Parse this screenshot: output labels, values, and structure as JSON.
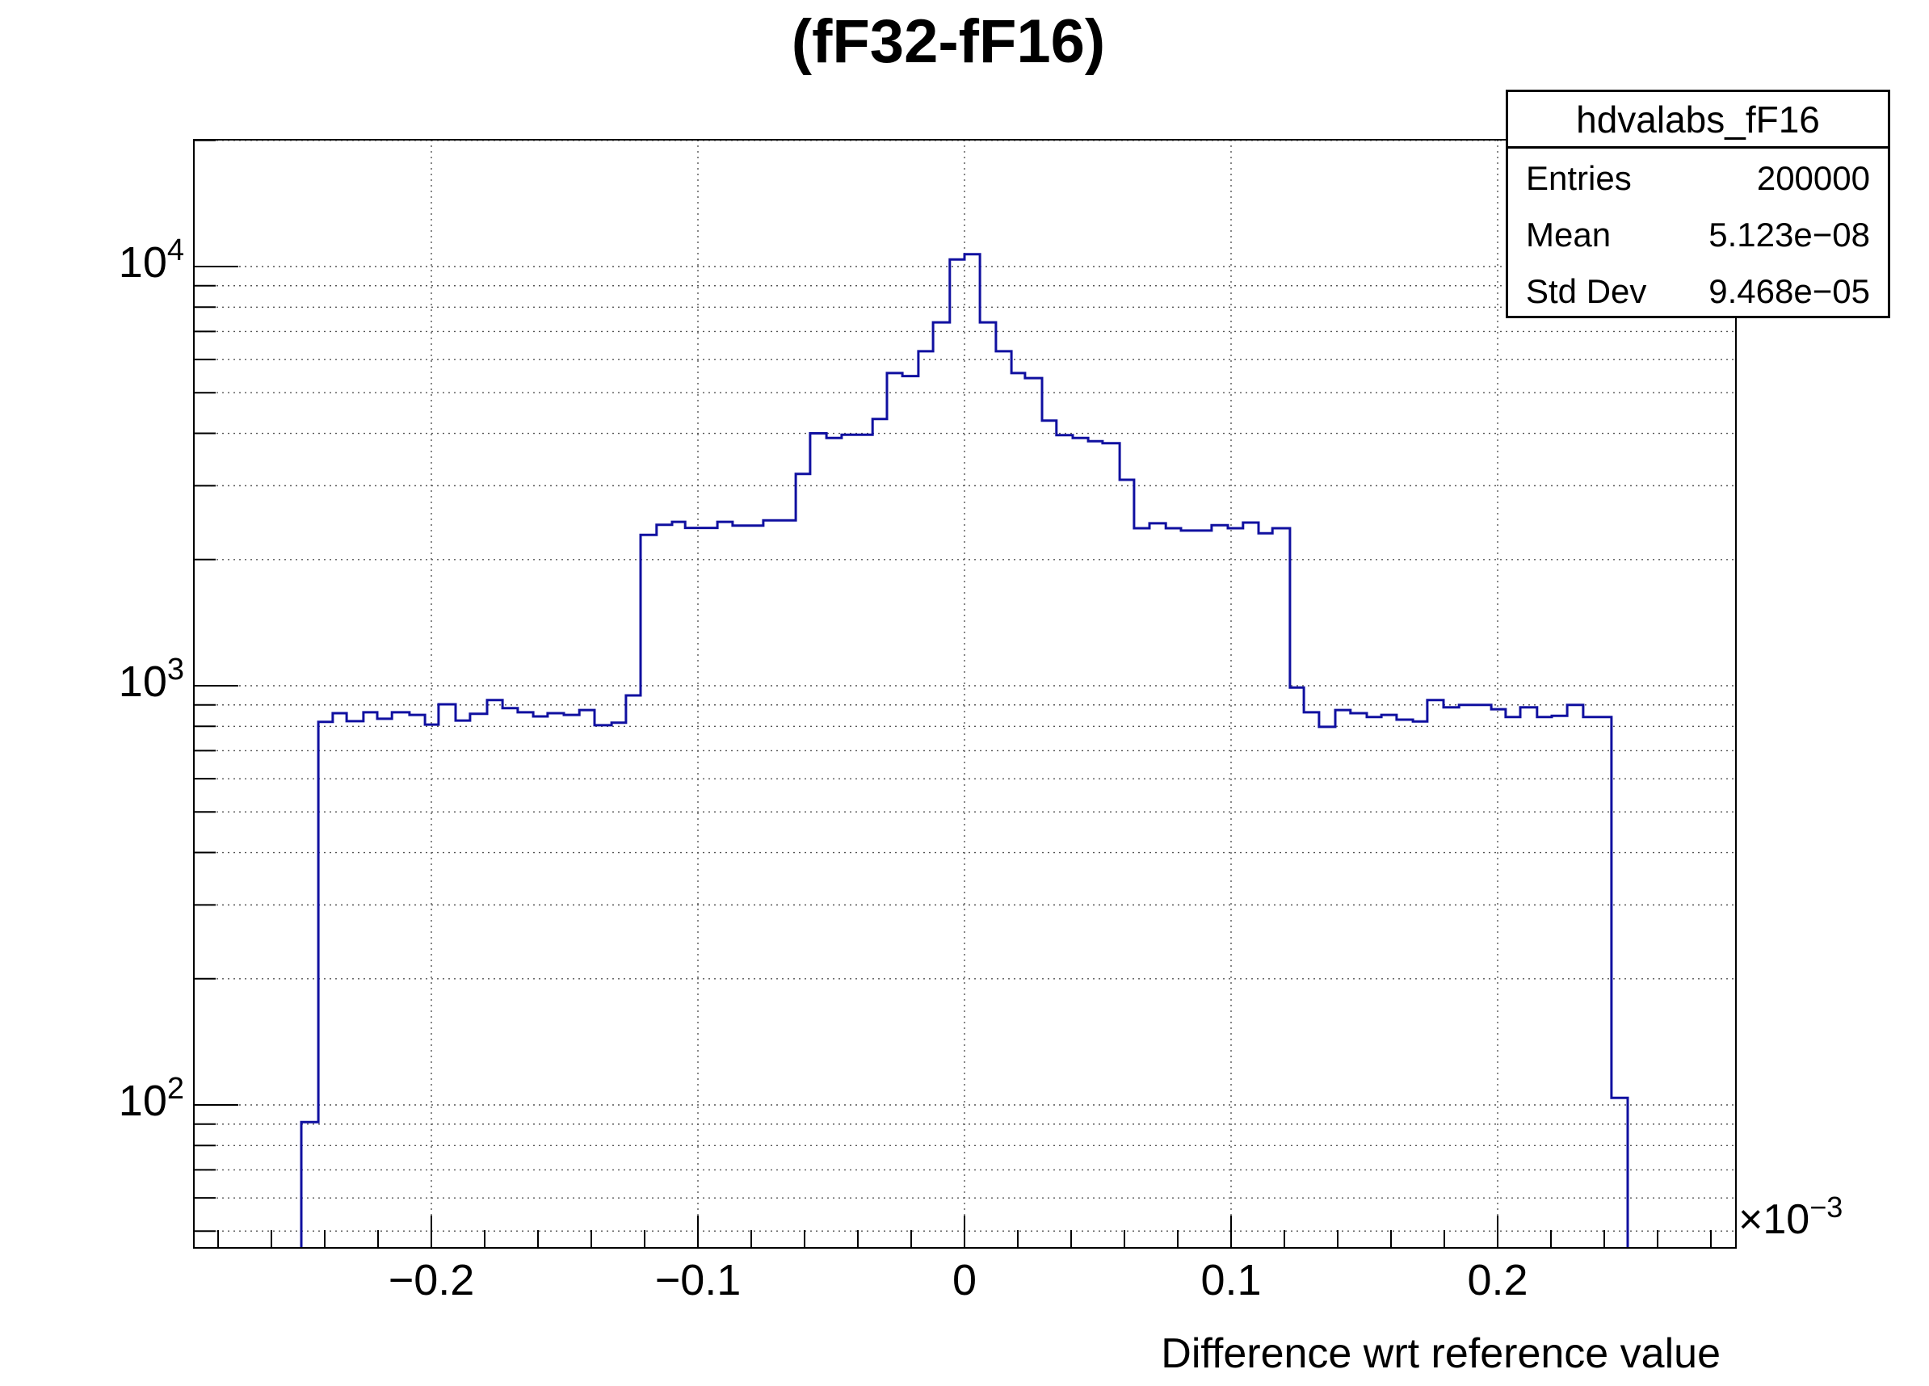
{
  "page": {
    "background": "#ffffff"
  },
  "title": "(fF32-fF16)",
  "stats_box": {
    "title": "hdvalabs_fF16",
    "rows": [
      {
        "label": "Entries",
        "value": "200000"
      },
      {
        "label": "Mean",
        "value": "5.123e−08"
      },
      {
        "label": "Std Dev",
        "value": "9.468e−05"
      }
    ]
  },
  "axes": {
    "x": {
      "title": "Difference wrt reference value",
      "scale_base": "×10",
      "scale_exp": "−3",
      "major_tick_labels": [
        "−0.2",
        "−0.1",
        "0",
        "0.1",
        "0.2"
      ],
      "major_tick_values": [
        -0.2,
        -0.1,
        0,
        0.1,
        0.2
      ],
      "minor_tick_step": 0.02,
      "range": [
        -0.2891,
        0.2894
      ]
    },
    "y": {
      "scale": "log",
      "tick_labels": [
        {
          "base": "10",
          "exp": "2"
        },
        {
          "base": "10",
          "exp": "3"
        },
        {
          "base": "10",
          "exp": "4"
        }
      ],
      "tick_values": [
        100,
        1000,
        10000
      ],
      "range": [
        45.5,
        20100
      ]
    }
  },
  "chart_data": {
    "type": "bar",
    "subtype": "step-histogram-logy",
    "title": "(fF32-fF16)",
    "xlabel": "Difference wrt reference value",
    "ylabel": "",
    "x_unit_scale": "1e-3",
    "xlim": [
      -0.2891,
      0.2894
    ],
    "ylim": [
      45.5,
      20100
    ],
    "grid": true,
    "line_color": "#1010a0",
    "grid_color": "#555555",
    "edges": [
      -0.2488,
      -0.2424,
      -0.237,
      -0.2318,
      -0.2255,
      -0.2203,
      -0.2148,
      -0.2082,
      -0.2024,
      -0.1973,
      -0.1909,
      -0.1855,
      -0.1791,
      -0.1733,
      -0.1676,
      -0.1618,
      -0.1564,
      -0.1503,
      -0.1445,
      -0.1388,
      -0.1324,
      -0.127,
      -0.1215,
      -0.1155,
      -0.1097,
      -0.1048,
      -0.0927,
      -0.087,
      -0.0755,
      -0.0633,
      -0.0579,
      -0.0518,
      -0.0461,
      -0.0345,
      -0.0291,
      -0.0233,
      -0.0173,
      -0.0118,
      -0.0055,
      0.0,
      0.0058,
      0.0118,
      0.0176,
      0.0227,
      0.0291,
      0.0345,
      0.0406,
      0.0464,
      0.0518,
      0.0582,
      0.0636,
      0.0694,
      0.0755,
      0.0812,
      0.0927,
      0.0988,
      0.1045,
      0.1103,
      0.1155,
      0.1221,
      0.1273,
      0.133,
      0.1391,
      0.1448,
      0.1509,
      0.1564,
      0.1621,
      0.1682,
      0.1736,
      0.1797,
      0.1855,
      0.1976,
      0.203,
      0.2085,
      0.2148,
      0.2203,
      0.2261,
      0.2321,
      0.2427,
      0.2488
    ],
    "counts": [
      91,
      820,
      860,
      823,
      864,
      834,
      864,
      852,
      808,
      903,
      826,
      857,
      924,
      884,
      864,
      845,
      860,
      852,
      875,
      805,
      816,
      948,
      2290,
      2420,
      2460,
      2380,
      2460,
      2410,
      2480,
      3200,
      4000,
      3900,
      3970,
      4330,
      5570,
      5480,
      6280,
      7360,
      10400,
      10700,
      7360,
      6280,
      5570,
      5420,
      4290,
      3960,
      3900,
      3830,
      3790,
      3100,
      2375,
      2440,
      2375,
      2345,
      2415,
      2375,
      2450,
      2310,
      2375,
      990,
      864,
      798,
      875,
      860,
      842,
      852,
      830,
      822,
      924,
      888,
      900,
      879,
      842,
      888,
      842,
      848,
      900,
      842,
      104
    ]
  }
}
